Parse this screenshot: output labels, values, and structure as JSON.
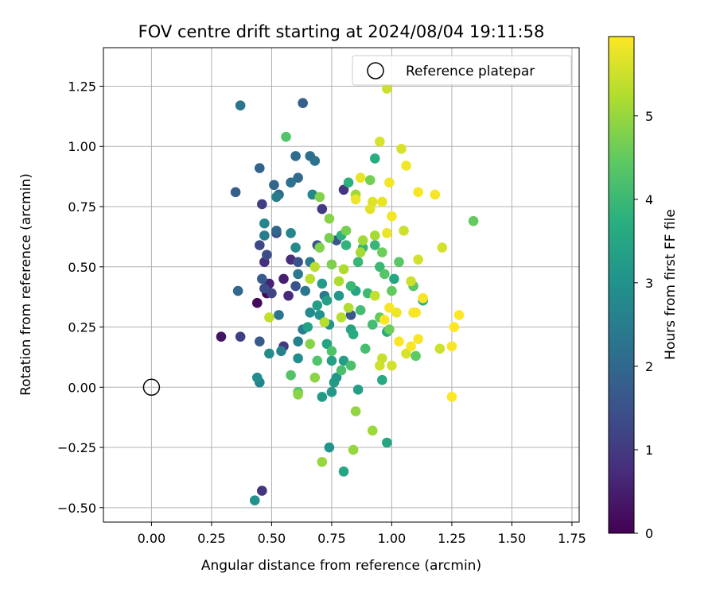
{
  "chart_data": {
    "type": "scatter",
    "title": "FOV centre drift starting at 2024/08/04 19:11:58",
    "xlabel": "Angular distance from reference (arcmin)",
    "ylabel": "Rotation from reference (arcmin)",
    "xlim": [
      -0.2,
      1.78
    ],
    "ylim": [
      -0.56,
      1.41
    ],
    "xticks": [
      "0.00",
      "0.25",
      "0.50",
      "0.75",
      "1.00",
      "1.25",
      "1.50",
      "1.75"
    ],
    "yticks": [
      "−0.50",
      "−0.25",
      "0.00",
      "0.25",
      "0.50",
      "0.75",
      "1.00",
      "1.25"
    ],
    "grid": true,
    "colormap": "viridis",
    "colorbar": {
      "label": "Hours from first FF file",
      "ticks": [
        "0",
        "1",
        "2",
        "3",
        "4",
        "5"
      ],
      "range": [
        0,
        5.95
      ]
    },
    "legend": {
      "position": "top-right",
      "entries": [
        "Reference platepar"
      ]
    },
    "reference_point": {
      "x": 0.0,
      "y": 0.0,
      "label": "Reference platepar"
    },
    "points": [
      {
        "x": 0.44,
        "y": 0.35,
        "h": 0.15
      },
      {
        "x": 0.48,
        "y": 0.39,
        "h": 0.1
      },
      {
        "x": 0.29,
        "y": 0.21,
        "h": 0.3
      },
      {
        "x": 0.55,
        "y": 0.45,
        "h": 0.5
      },
      {
        "x": 0.49,
        "y": 0.43,
        "h": 0.6
      },
      {
        "x": 0.57,
        "y": 0.38,
        "h": 0.7
      },
      {
        "x": 0.47,
        "y": 0.52,
        "h": 0.8
      },
      {
        "x": 0.58,
        "y": 0.53,
        "h": 0.75
      },
      {
        "x": 0.46,
        "y": -0.43,
        "h": 0.9
      },
      {
        "x": 0.8,
        "y": 0.82,
        "h": 0.95
      },
      {
        "x": 0.71,
        "y": 0.74,
        "h": 1.0
      },
      {
        "x": 0.55,
        "y": 0.17,
        "h": 1.0
      },
      {
        "x": 0.37,
        "y": 0.21,
        "h": 1.1
      },
      {
        "x": 0.5,
        "y": 0.39,
        "h": 1.2
      },
      {
        "x": 0.46,
        "y": 0.76,
        "h": 1.1
      },
      {
        "x": 0.45,
        "y": 0.59,
        "h": 1.3
      },
      {
        "x": 0.52,
        "y": 0.64,
        "h": 1.35
      },
      {
        "x": 0.48,
        "y": 0.55,
        "h": 1.4
      },
      {
        "x": 0.47,
        "y": 0.41,
        "h": 1.4
      },
      {
        "x": 0.6,
        "y": 0.42,
        "h": 1.5
      },
      {
        "x": 0.61,
        "y": 0.52,
        "h": 1.5
      },
      {
        "x": 0.69,
        "y": 0.59,
        "h": 1.55
      },
      {
        "x": 0.77,
        "y": 0.61,
        "h": 1.6
      },
      {
        "x": 0.83,
        "y": 0.3,
        "h": 1.6
      },
      {
        "x": 0.45,
        "y": 0.19,
        "h": 1.7
      },
      {
        "x": 0.46,
        "y": 0.45,
        "h": 1.7
      },
      {
        "x": 0.35,
        "y": 0.81,
        "h": 1.75
      },
      {
        "x": 0.63,
        "y": 1.18,
        "h": 1.8
      },
      {
        "x": 0.36,
        "y": 0.4,
        "h": 2.0
      },
      {
        "x": 0.45,
        "y": 0.91,
        "h": 1.9
      },
      {
        "x": 0.51,
        "y": 0.84,
        "h": 1.95
      },
      {
        "x": 0.53,
        "y": 0.8,
        "h": 2.0
      },
      {
        "x": 0.52,
        "y": 0.65,
        "h": 2.0
      },
      {
        "x": 0.61,
        "y": 0.87,
        "h": 2.05
      },
      {
        "x": 0.6,
        "y": 0.96,
        "h": 2.1
      },
      {
        "x": 0.66,
        "y": 0.96,
        "h": 2.15
      },
      {
        "x": 0.58,
        "y": 0.85,
        "h": 2.2
      },
      {
        "x": 0.68,
        "y": 0.94,
        "h": 2.25
      },
      {
        "x": 0.37,
        "y": 1.17,
        "h": 2.3
      },
      {
        "x": 0.53,
        "y": 0.3,
        "h": 2.3
      },
      {
        "x": 0.64,
        "y": 0.4,
        "h": 2.35
      },
      {
        "x": 0.61,
        "y": 0.47,
        "h": 2.4
      },
      {
        "x": 0.66,
        "y": 0.52,
        "h": 2.45
      },
      {
        "x": 0.72,
        "y": 0.38,
        "h": 2.4
      },
      {
        "x": 0.47,
        "y": 0.63,
        "h": 2.5
      },
      {
        "x": 0.52,
        "y": 0.79,
        "h": 2.5
      },
      {
        "x": 0.63,
        "y": 0.24,
        "h": 2.55
      },
      {
        "x": 0.61,
        "y": 0.19,
        "h": 2.6
      },
      {
        "x": 0.54,
        "y": 0.15,
        "h": 2.6
      },
      {
        "x": 0.45,
        "y": 0.02,
        "h": 2.65
      },
      {
        "x": 0.47,
        "y": 0.68,
        "h": 2.7
      },
      {
        "x": 0.58,
        "y": 0.64,
        "h": 2.7
      },
      {
        "x": 0.67,
        "y": 0.8,
        "h": 2.75
      },
      {
        "x": 0.6,
        "y": 0.58,
        "h": 2.8
      },
      {
        "x": 0.66,
        "y": 0.31,
        "h": 2.85
      },
      {
        "x": 0.61,
        "y": 0.12,
        "h": 2.85
      },
      {
        "x": 0.49,
        "y": 0.14,
        "h": 2.9
      },
      {
        "x": 0.44,
        "y": 0.04,
        "h": 2.9
      },
      {
        "x": 0.43,
        "y": -0.47,
        "h": 3.0
      },
      {
        "x": 0.74,
        "y": -0.25,
        "h": 3.05
      },
      {
        "x": 0.7,
        "y": 0.3,
        "h": 3.0
      },
      {
        "x": 0.74,
        "y": 0.26,
        "h": 3.05
      },
      {
        "x": 0.78,
        "y": 0.38,
        "h": 3.1
      },
      {
        "x": 0.77,
        "y": 0.04,
        "h": 3.1
      },
      {
        "x": 0.75,
        "y": -0.02,
        "h": 3.15
      },
      {
        "x": 0.71,
        "y": -0.04,
        "h": 3.2
      },
      {
        "x": 0.76,
        "y": 0.02,
        "h": 3.2
      },
      {
        "x": 0.8,
        "y": 0.11,
        "h": 3.3
      },
      {
        "x": 0.86,
        "y": -0.01,
        "h": 3.3
      },
      {
        "x": 0.71,
        "y": 0.43,
        "h": 3.25
      },
      {
        "x": 0.73,
        "y": 0.36,
        "h": 3.3
      },
      {
        "x": 0.69,
        "y": 0.34,
        "h": 3.3
      },
      {
        "x": 0.75,
        "y": 0.11,
        "h": 3.35
      },
      {
        "x": 0.65,
        "y": 0.25,
        "h": 3.4
      },
      {
        "x": 0.73,
        "y": 0.18,
        "h": 3.45
      },
      {
        "x": 0.83,
        "y": 0.24,
        "h": 3.4
      },
      {
        "x": 0.85,
        "y": 0.4,
        "h": 3.5
      },
      {
        "x": 0.8,
        "y": -0.35,
        "h": 3.5
      },
      {
        "x": 0.98,
        "y": -0.23,
        "h": 3.5
      },
      {
        "x": 1.01,
        "y": 0.45,
        "h": 3.55
      },
      {
        "x": 0.98,
        "y": 0.23,
        "h": 3.6
      },
      {
        "x": 0.96,
        "y": 0.03,
        "h": 3.6
      },
      {
        "x": 0.84,
        "y": 0.22,
        "h": 3.65
      },
      {
        "x": 0.93,
        "y": 0.95,
        "h": 3.7
      },
      {
        "x": 1.13,
        "y": 0.36,
        "h": 3.7
      },
      {
        "x": 0.82,
        "y": 0.85,
        "h": 3.8
      },
      {
        "x": 0.79,
        "y": 0.63,
        "h": 3.8
      },
      {
        "x": 0.81,
        "y": 0.59,
        "h": 3.85
      },
      {
        "x": 0.88,
        "y": 0.58,
        "h": 3.9
      },
      {
        "x": 0.86,
        "y": 0.52,
        "h": 3.95
      },
      {
        "x": 0.83,
        "y": 0.42,
        "h": 4.0
      },
      {
        "x": 0.93,
        "y": 0.59,
        "h": 3.95
      },
      {
        "x": 0.95,
        "y": 0.5,
        "h": 4.0
      },
      {
        "x": 0.9,
        "y": 0.39,
        "h": 4.05
      },
      {
        "x": 0.92,
        "y": 0.26,
        "h": 4.1
      },
      {
        "x": 0.87,
        "y": 0.32,
        "h": 4.1
      },
      {
        "x": 0.89,
        "y": 0.16,
        "h": 4.15
      },
      {
        "x": 0.83,
        "y": 0.09,
        "h": 4.2
      },
      {
        "x": 0.79,
        "y": 0.07,
        "h": 4.2
      },
      {
        "x": 0.75,
        "y": 0.15,
        "h": 4.25
      },
      {
        "x": 0.69,
        "y": 0.11,
        "h": 4.3
      },
      {
        "x": 0.61,
        "y": -0.02,
        "h": 4.35
      },
      {
        "x": 0.58,
        "y": 0.05,
        "h": 4.3
      },
      {
        "x": 0.56,
        "y": 1.04,
        "h": 4.3
      },
      {
        "x": 0.97,
        "y": 0.47,
        "h": 4.35
      },
      {
        "x": 1.03,
        "y": 0.52,
        "h": 4.4
      },
      {
        "x": 1.09,
        "y": 0.42,
        "h": 4.4
      },
      {
        "x": 1.1,
        "y": 0.13,
        "h": 4.45
      },
      {
        "x": 1.34,
        "y": 0.69,
        "h": 4.5
      },
      {
        "x": 1.0,
        "y": 0.4,
        "h": 4.5
      },
      {
        "x": 0.95,
        "y": 0.29,
        "h": 4.55
      },
      {
        "x": 0.99,
        "y": 0.24,
        "h": 4.6
      },
      {
        "x": 0.96,
        "y": 0.56,
        "h": 4.6
      },
      {
        "x": 0.91,
        "y": 0.86,
        "h": 4.65
      },
      {
        "x": 0.81,
        "y": 0.65,
        "h": 4.7
      },
      {
        "x": 0.74,
        "y": 0.62,
        "h": 4.7
      },
      {
        "x": 0.75,
        "y": 0.51,
        "h": 4.75
      },
      {
        "x": 0.7,
        "y": 0.58,
        "h": 4.8
      },
      {
        "x": 0.7,
        "y": 0.79,
        "h": 4.8
      },
      {
        "x": 0.74,
        "y": 0.7,
        "h": 4.85
      },
      {
        "x": 0.66,
        "y": 0.18,
        "h": 4.85
      },
      {
        "x": 0.61,
        "y": -0.03,
        "h": 4.9
      },
      {
        "x": 0.68,
        "y": 0.04,
        "h": 4.9
      },
      {
        "x": 0.85,
        "y": -0.1,
        "h": 4.95
      },
      {
        "x": 0.84,
        "y": -0.26,
        "h": 5.0
      },
      {
        "x": 0.71,
        "y": -0.31,
        "h": 5.0
      },
      {
        "x": 0.92,
        "y": -0.18,
        "h": 5.05
      },
      {
        "x": 0.85,
        "y": 0.8,
        "h": 5.1
      },
      {
        "x": 0.88,
        "y": 0.61,
        "h": 5.1
      },
      {
        "x": 0.93,
        "y": 0.63,
        "h": 5.15
      },
      {
        "x": 0.87,
        "y": 0.56,
        "h": 5.15
      },
      {
        "x": 0.8,
        "y": 0.49,
        "h": 5.2
      },
      {
        "x": 0.78,
        "y": 0.44,
        "h": 5.2
      },
      {
        "x": 0.82,
        "y": 0.33,
        "h": 5.25
      },
      {
        "x": 0.79,
        "y": 0.29,
        "h": 5.3
      },
      {
        "x": 0.72,
        "y": 0.27,
        "h": 5.3
      },
      {
        "x": 0.66,
        "y": 0.45,
        "h": 5.3
      },
      {
        "x": 0.68,
        "y": 0.5,
        "h": 5.35
      },
      {
        "x": 0.49,
        "y": 0.29,
        "h": 5.4
      },
      {
        "x": 0.93,
        "y": 0.38,
        "h": 5.4
      },
      {
        "x": 0.96,
        "y": 0.12,
        "h": 5.45
      },
      {
        "x": 0.95,
        "y": 0.09,
        "h": 5.5
      },
      {
        "x": 1.0,
        "y": 0.09,
        "h": 5.55
      },
      {
        "x": 1.05,
        "y": 0.65,
        "h": 5.5
      },
      {
        "x": 1.08,
        "y": 0.44,
        "h": 5.5
      },
      {
        "x": 1.06,
        "y": 0.14,
        "h": 5.6
      },
      {
        "x": 1.11,
        "y": 0.53,
        "h": 5.55
      },
      {
        "x": 1.2,
        "y": 0.16,
        "h": 5.5
      },
      {
        "x": 1.21,
        "y": 0.58,
        "h": 5.55
      },
      {
        "x": 0.98,
        "y": 1.24,
        "h": 5.5
      },
      {
        "x": 0.95,
        "y": 1.02,
        "h": 5.6
      },
      {
        "x": 1.04,
        "y": 0.99,
        "h": 5.6
      },
      {
        "x": 0.92,
        "y": 0.77,
        "h": 5.65
      },
      {
        "x": 0.91,
        "y": 0.74,
        "h": 5.7
      },
      {
        "x": 0.87,
        "y": 0.87,
        "h": 5.75
      },
      {
        "x": 0.85,
        "y": 0.78,
        "h": 5.8
      },
      {
        "x": 0.96,
        "y": 0.77,
        "h": 5.75
      },
      {
        "x": 0.98,
        "y": 0.64,
        "h": 5.8
      },
      {
        "x": 0.99,
        "y": 0.85,
        "h": 5.85
      },
      {
        "x": 1.0,
        "y": 0.71,
        "h": 5.85
      },
      {
        "x": 1.06,
        "y": 0.92,
        "h": 5.85
      },
      {
        "x": 1.11,
        "y": 0.81,
        "h": 5.9
      },
      {
        "x": 1.18,
        "y": 0.8,
        "h": 5.9
      },
      {
        "x": 1.02,
        "y": 0.31,
        "h": 5.8
      },
      {
        "x": 0.99,
        "y": 0.33,
        "h": 5.9
      },
      {
        "x": 1.03,
        "y": 0.19,
        "h": 5.9
      },
      {
        "x": 1.09,
        "y": 0.31,
        "h": 5.85
      },
      {
        "x": 1.1,
        "y": 0.31,
        "h": 5.9
      },
      {
        "x": 1.11,
        "y": 0.2,
        "h": 5.9
      },
      {
        "x": 1.08,
        "y": 0.17,
        "h": 5.9
      },
      {
        "x": 1.13,
        "y": 0.37,
        "h": 5.9
      },
      {
        "x": 1.25,
        "y": 0.17,
        "h": 5.9
      },
      {
        "x": 1.26,
        "y": 0.25,
        "h": 5.95
      },
      {
        "x": 1.28,
        "y": 0.3,
        "h": 5.95
      },
      {
        "x": 1.25,
        "y": -0.04,
        "h": 5.95
      },
      {
        "x": 0.97,
        "y": 0.28,
        "h": 5.95
      }
    ]
  }
}
